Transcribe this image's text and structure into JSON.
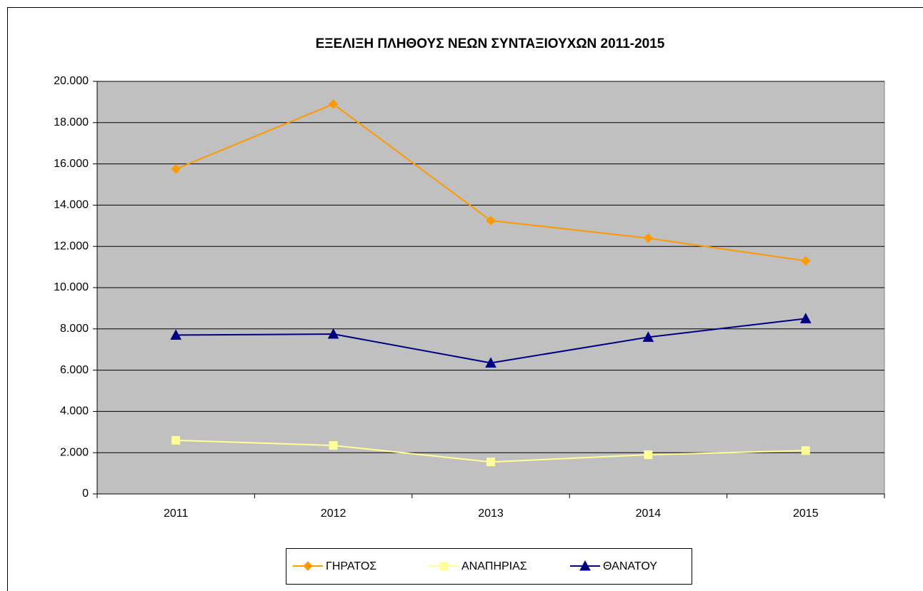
{
  "chart_data": {
    "type": "line",
    "title": "ΕΞΕΛΙΞΗ ΠΛΗΘΟΥΣ ΝΕΩΝ ΣΥΝΤΑΞΙΟΥΧΩΝ 2011-2015",
    "categories": [
      "2011",
      "2012",
      "2013",
      "2014",
      "2015"
    ],
    "series": [
      {
        "name": "ΓΗΡΑΤΟΣ",
        "color": "#ff9900",
        "marker": "diamond",
        "values": [
          15750,
          18900,
          13250,
          12400,
          11300
        ]
      },
      {
        "name": "ΑΝΑΠΗΡΙΑΣ",
        "color": "#ffff99",
        "marker": "square",
        "values": [
          2600,
          2350,
          1550,
          1900,
          2100
        ]
      },
      {
        "name": "ΘΑΝΑΤΟΥ",
        "color": "#000080",
        "marker": "triangle",
        "values": [
          7700,
          7750,
          6350,
          7600,
          8500
        ]
      }
    ],
    "ylim": [
      0,
      20000
    ],
    "yticks": [
      0,
      {
        "value": 2000,
        "label": "2.000"
      },
      {
        "value": 4000,
        "label": "4.000"
      },
      {
        "value": 6000,
        "label": "6.000"
      },
      {
        "value": 8000,
        "label": "8.000"
      },
      {
        "value": 10000,
        "label": "10.000"
      },
      {
        "value": 12000,
        "label": "12.000"
      },
      {
        "value": 14000,
        "label": "14.000"
      },
      {
        "value": 16000,
        "label": "16.000"
      },
      {
        "value": 18000,
        "label": "18.000"
      },
      {
        "value": 20000,
        "label": "20.000"
      }
    ],
    "grid": true,
    "legend": "bottom"
  }
}
